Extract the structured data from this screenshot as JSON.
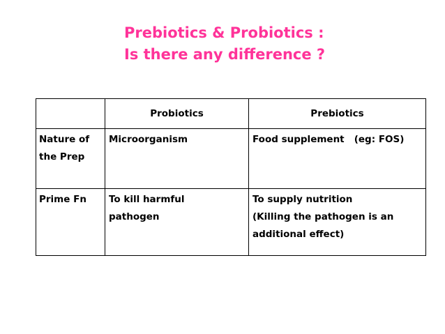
{
  "title": {
    "line1": "Prebiotics & Probiotics :",
    "line2": "Is there any difference ?"
  },
  "table": {
    "headers": [
      "",
      "Probiotics",
      "Prebiotics"
    ],
    "rows": [
      {
        "label_lines": [
          "Nature of",
          "the Prep"
        ],
        "probiotics_lines": [
          "Microorganism"
        ],
        "prebiotics_lines": [
          "Food supplement   (eg: FOS)"
        ]
      },
      {
        "label_lines": [
          "Prime Fn"
        ],
        "probiotics_lines": [
          "To kill harmful",
          "pathogen"
        ],
        "prebiotics_lines": [
          "To supply nutrition",
          "(Killing the pathogen is an",
          "additional effect)"
        ]
      }
    ]
  },
  "colors": {
    "title": "#ff3399",
    "border": "#000000",
    "text": "#000000"
  }
}
